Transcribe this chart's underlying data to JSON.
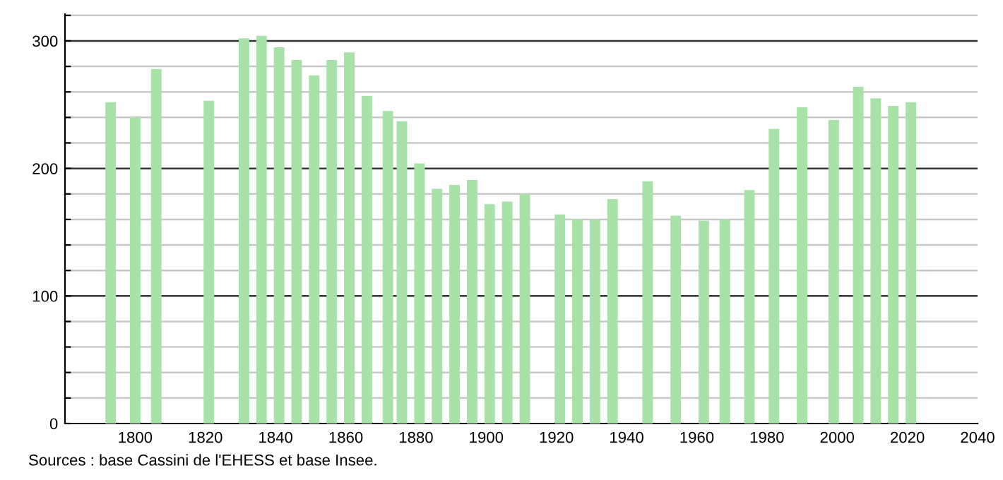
{
  "chart_data": {
    "type": "bar",
    "x": [
      1793,
      1800,
      1806,
      1821,
      1831,
      1836,
      1841,
      1846,
      1851,
      1856,
      1861,
      1866,
      1872,
      1876,
      1881,
      1886,
      1891,
      1896,
      1901,
      1906,
      1911,
      1921,
      1926,
      1931,
      1936,
      1946,
      1954,
      1962,
      1968,
      1975,
      1982,
      1990,
      1999,
      2006,
      2011,
      2016,
      2021
    ],
    "values": [
      252,
      240,
      278,
      253,
      302,
      304,
      295,
      285,
      273,
      285,
      291,
      257,
      245,
      237,
      204,
      184,
      187,
      191,
      172,
      174,
      180,
      164,
      160,
      160,
      176,
      190,
      163,
      159,
      160,
      183,
      231,
      248,
      238,
      264,
      255,
      249,
      252
    ],
    "color": "#a8e2a8",
    "xlim": [
      1780,
      2040
    ],
    "xticks": [
      1800,
      1820,
      1840,
      1860,
      1880,
      1900,
      1920,
      1940,
      1960,
      1980,
      2000,
      2020,
      2040
    ],
    "ylim": [
      0,
      321
    ],
    "yticks": [
      0,
      {
        "value": 20,
        "label": null
      },
      {
        "value": 40,
        "label": null
      },
      {
        "value": 60,
        "label": null
      },
      {
        "value": 80,
        "label": null
      },
      100,
      {
        "value": 120,
        "label": null
      },
      {
        "value": 140,
        "label": null
      },
      {
        "value": 160,
        "label": null
      },
      {
        "value": 180,
        "label": null
      },
      200,
      {
        "value": 220,
        "label": null
      },
      {
        "value": 240,
        "label": null
      },
      {
        "value": 260,
        "label": null
      },
      {
        "value": 280,
        "label": null
      },
      300,
      {
        "value": 320,
        "label": null
      }
    ],
    "grid": "y",
    "annotations": [
      "Sources : base Cassini de l'EHESS et base Insee."
    ]
  }
}
